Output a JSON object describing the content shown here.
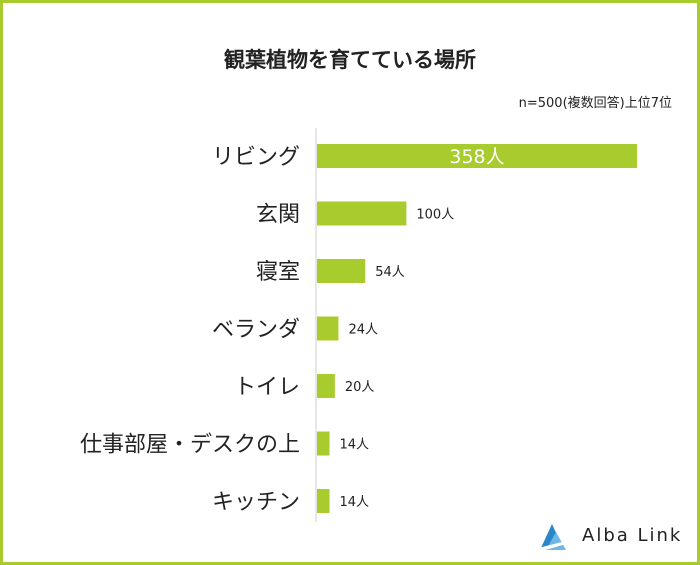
{
  "chart_data": {
    "type": "bar",
    "orientation": "horizontal",
    "title": "観葉植物を育てている場所",
    "note": "n=500(複数回答)上位7位",
    "categories": [
      "リビング",
      "玄関",
      "寝室",
      "ベランダ",
      "トイレ",
      "仕事部屋・デスクの上",
      "キッチン"
    ],
    "values": [
      358,
      100,
      54,
      24,
      20,
      14,
      14
    ],
    "value_unit": "人",
    "max_value": 358,
    "bar_color": "#a8cc2d",
    "legend": "none",
    "grid": false
  },
  "brand": {
    "name": "Alba Link",
    "color": "#2a86c8"
  },
  "colors": {
    "border": "#a8cc2d",
    "axis": "#cfcfcf",
    "text": "#222222"
  }
}
